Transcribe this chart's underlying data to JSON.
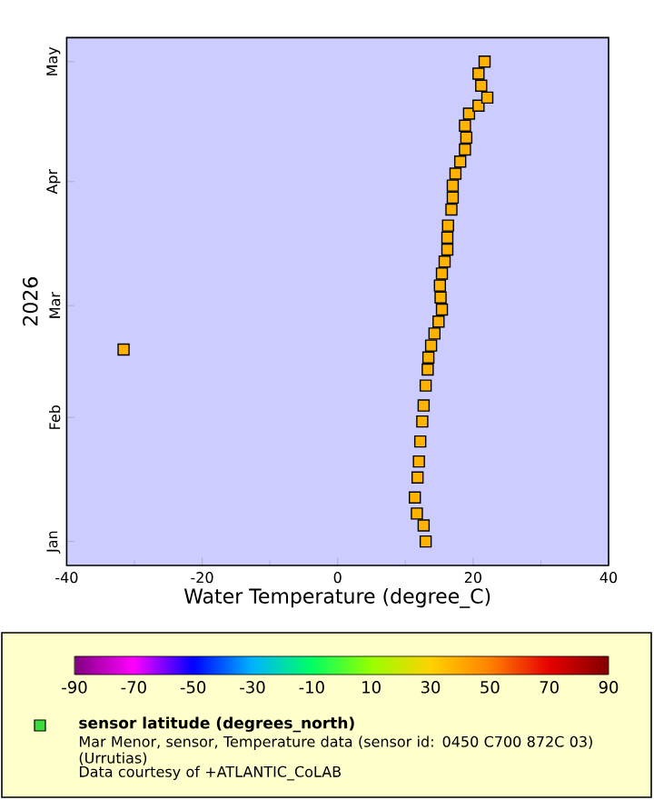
{
  "chart_data": {
    "type": "scatter",
    "orientation": "horizontal",
    "xlabel": "Water Temperature (degree_C)",
    "ylabel": "2026",
    "clabel": "sensor latitude (degrees_north)",
    "annotations": [
      "Mar Menor, sensor, Temperature data (sensor id: 0450 C700 872C 03) (Urrutias)",
      "Data courtesy of +ATLANTIC_CoLAB"
    ],
    "xlim": [
      -40,
      40
    ],
    "xticks": [
      -40,
      -20,
      0,
      20,
      40
    ],
    "ylim": [
      "2025-12-26",
      "2026-05-07"
    ],
    "yticks": [
      {
        "value": "2026-01-01",
        "label": "Jan"
      },
      {
        "value": "2026-02-01",
        "label": "Feb"
      },
      {
        "value": "2026-03-01",
        "label": "Mar"
      },
      {
        "value": "2026-04-01",
        "label": "Apr"
      },
      {
        "value": "2026-05-01",
        "label": "May"
      }
    ],
    "clim": [
      -90,
      90
    ],
    "cticks": [
      -90,
      -70,
      -50,
      -30,
      -10,
      10,
      30,
      50,
      70,
      90
    ],
    "marker": "square",
    "x": [
      "2026-01-01",
      "2026-01-05",
      "2026-01-08",
      "2026-01-12",
      "2026-01-17",
      "2026-01-21",
      "2026-01-26",
      "2026-01-31",
      "2026-02-04",
      "2026-02-09",
      "2026-02-13",
      "2026-02-16",
      "2026-02-19",
      "2026-02-22",
      "2026-02-25",
      "2026-02-28",
      "2026-03-03",
      "2026-03-06",
      "2026-03-09",
      "2026-03-12",
      "2026-03-15",
      "2026-03-18",
      "2026-03-21",
      "2026-03-25",
      "2026-03-28",
      "2026-03-31",
      "2026-04-03",
      "2026-04-06",
      "2026-04-09",
      "2026-04-12",
      "2026-04-15",
      "2026-04-18",
      "2026-04-20",
      "2026-04-22",
      "2026-04-25",
      "2026-04-28",
      "2026-05-01",
      "2026-02-18"
    ],
    "values": [
      13.0,
      12.7,
      11.7,
      11.4,
      11.8,
      12.0,
      12.2,
      12.5,
      12.7,
      13.0,
      13.3,
      13.4,
      13.8,
      14.3,
      14.9,
      15.4,
      15.2,
      15.1,
      15.4,
      15.8,
      16.2,
      16.2,
      16.3,
      16.8,
      17.0,
      17.0,
      17.4,
      18.1,
      18.8,
      19.0,
      18.8,
      19.4,
      20.8,
      22.1,
      21.2,
      20.8,
      21.7,
      -31.6
    ],
    "cvalues": [
      37.7,
      37.7,
      37.7,
      37.7,
      37.7,
      37.7,
      37.7,
      37.7,
      37.7,
      37.7,
      37.7,
      37.7,
      37.7,
      37.7,
      37.7,
      37.7,
      37.7,
      37.7,
      37.7,
      37.7,
      37.7,
      37.7,
      37.7,
      37.7,
      37.7,
      37.7,
      37.7,
      37.7,
      37.7,
      37.7,
      37.7,
      37.7,
      37.7,
      37.7,
      37.7,
      37.7,
      37.7,
      37.7
    ]
  }
}
